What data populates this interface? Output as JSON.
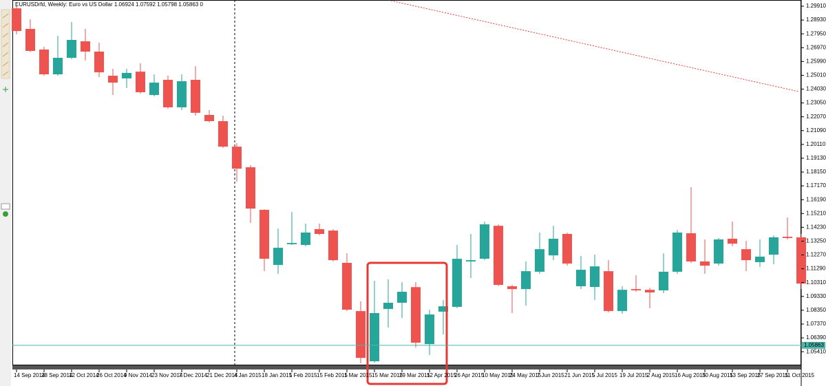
{
  "chart_data": {
    "type": "candlestick",
    "title": "EURUSDrfd, Weekly:  Euro vs US Dollar  1.06924 1.07592 1.05798 1.05863  0",
    "categories": [
      "14 Sep 2014",
      null,
      "28 Sep 2014",
      null,
      "12 Oct 2014",
      null,
      "26 Oct 2014",
      null,
      "9 Nov 2014",
      null,
      "23 Nov 2014",
      null,
      "7 Dec 2014",
      null,
      "21 Dec 2014",
      null,
      "4 Jan 2015",
      null,
      "18 Jan 2015",
      null,
      "1 Feb 2015",
      null,
      "15 Feb 2015",
      null,
      "1 Mar 2015",
      null,
      "15 Mar 2015",
      null,
      "29 Mar 2015",
      null,
      "12 Apr 2015",
      null,
      "26 Apr 2015",
      null,
      "10 May 2015",
      null,
      "24 May 2015",
      null,
      "7 Jun 2015",
      null,
      "21 Jun 2015",
      null,
      "5 Jul 2015",
      null,
      "19 Jul 2015",
      null,
      "2 Aug 2015",
      null,
      "16 Aug 2015",
      null,
      "30 Aug 2015",
      null,
      "13 Sep 2015",
      null,
      "27 Sep 2015",
      null,
      "11 Oct 2015",
      null
    ],
    "open": [
      1.2976,
      1.283,
      1.2684,
      1.2508,
      1.2625,
      1.2742,
      1.2669,
      1.2498,
      1.2479,
      1.2527,
      1.2361,
      1.2469,
      1.2274,
      1.2469,
      1.222,
      1.2176,
      1.1995,
      1.1849,
      1.1547,
      1.1156,
      1.1303,
      1.1298,
      1.141,
      1.14,
      1.1171,
      1.0829,
      1.0473,
      1.0844,
      1.0888,
      1.0999,
      1.0595,
      1.0825,
      1.0859,
      1.1181,
      1.12,
      1.1434,
      1.1005,
      1.0985,
      1.1108,
      1.1224,
      1.1376,
      1.1005,
      1.1,
      1.1112,
      1.0829,
      1.0985,
      1.098,
      1.0976,
      1.1108,
      1.1381,
      1.1181,
      1.1166,
      1.1342,
      1.1268,
      1.1176,
      1.1229,
      1.1356,
      1.1352
    ],
    "high": [
      1.2996,
      1.2898,
      1.2703,
      1.2781,
      1.2879,
      1.283,
      1.2732,
      1.2547,
      1.2547,
      1.2586,
      1.2508,
      1.2498,
      1.2508,
      1.2566,
      1.2254,
      1.2215,
      1.202,
      1.1864,
      1.1551,
      1.1415,
      1.1532,
      1.1449,
      1.1449,
      1.141,
      1.1239,
      1.0898,
      1.1044,
      1.1054,
      1.1034,
      1.1034,
      1.0839,
      1.0907,
      1.1298,
      1.1376,
      1.1464,
      1.1444,
      1.1015,
      1.1181,
      1.1386,
      1.1434,
      1.1386,
      1.122,
      1.1229,
      1.119,
      1.1005,
      1.1083,
      1.0995,
      1.1239,
      1.1405,
      1.1708,
      1.1337,
      1.1347,
      1.1464,
      1.1327,
      1.1337,
      1.1366,
      1.1493,
      1.1376
    ],
    "low": [
      1.2791,
      1.2664,
      1.2498,
      1.2498,
      1.2615,
      1.2606,
      1.2488,
      1.2361,
      1.241,
      1.2371,
      1.2352,
      1.2264,
      1.2254,
      1.2215,
      1.2166,
      1.1986,
      1.1746,
      1.1454,
      1.1112,
      1.1093,
      1.1298,
      1.1288,
      1.1366,
      1.1181,
      1.0829,
      1.0458,
      1.0463,
      1.0712,
      1.078,
      1.0571,
      1.0517,
      1.0663,
      1.0849,
      1.1063,
      1.119,
      1.1005,
      1.0815,
      1.0868,
      1.1093,
      1.119,
      1.1151,
      1.0985,
      1.0907,
      1.082,
      1.081,
      1.0966,
      1.0849,
      1.0956,
      1.1093,
      1.1171,
      1.1093,
      1.1151,
      1.1288,
      1.1112,
      1.1142,
      1.1161,
      1.1337,
      1.0985
    ],
    "close": [
      1.2815,
      1.2674,
      1.2508,
      1.2625,
      1.2752,
      1.2669,
      1.2522,
      1.2449,
      1.2518,
      1.2381,
      1.2449,
      1.2274,
      1.2459,
      1.2235,
      1.2176,
      1.1995,
      1.1839,
      1.1556,
      1.12,
      1.1278,
      1.1312,
      1.1386,
      1.1376,
      1.119,
      1.0839,
      1.0497,
      1.0815,
      1.0888,
      1.0966,
      1.0605,
      1.0805,
      1.0863,
      1.12,
      1.119,
      1.1444,
      1.1015,
      1.0985,
      1.1112,
      1.1268,
      1.1342,
      1.1166,
      1.1122,
      1.1146,
      1.0829,
      1.098,
      1.0976,
      1.0961,
      1.1108,
      1.1386,
      1.1181,
      1.1151,
      1.1337,
      1.1307,
      1.119,
      1.1215,
      1.1352,
      1.1347,
      1.1024
    ],
    "up_color": "#26a69a",
    "down_color": "#ef5350",
    "last_price": 1.05863,
    "last_price_color": "#4db6ac",
    "ylim": [
      1.0449,
      1.3035
    ],
    "yticks": [
      {
        "value": 1.2991,
        "label": "1.29910"
      },
      {
        "value": 1.2893,
        "label": "1.28930"
      },
      {
        "value": 1.2795,
        "label": "1.27950"
      },
      {
        "value": 1.2697,
        "label": "1.26970"
      },
      {
        "value": 1.2599,
        "label": "1.25990"
      },
      {
        "value": 1.2501,
        "label": "1.25010"
      },
      {
        "value": 1.2403,
        "label": "1.24030"
      },
      {
        "value": 1.2305,
        "label": "1.23050"
      },
      {
        "value": 1.2207,
        "label": "1.22070"
      },
      {
        "value": 1.2109,
        "label": "1.21090"
      },
      {
        "value": 1.2011,
        "label": "1.20110"
      },
      {
        "value": 1.1913,
        "label": "1.19130"
      },
      {
        "value": 1.1815,
        "label": "1.18150"
      },
      {
        "value": 1.1717,
        "label": "1.17170"
      },
      {
        "value": 1.1619,
        "label": "1.16190"
      },
      {
        "value": 1.1521,
        "label": "1.15210"
      },
      {
        "value": 1.1423,
        "label": "1.14230"
      },
      {
        "value": 1.1325,
        "label": "1.13250"
      },
      {
        "value": 1.1227,
        "label": "1.12270"
      },
      {
        "value": 1.1129,
        "label": "1.11290"
      },
      {
        "value": 1.1031,
        "label": "1.10310"
      },
      {
        "value": 1.0933,
        "label": "1.09330"
      },
      {
        "value": 1.0835,
        "label": "1.08350"
      },
      {
        "value": 1.0737,
        "label": "1.07370"
      },
      {
        "value": 1.0639,
        "label": "1.06390"
      },
      {
        "value": 1.0541,
        "label": "1.05410"
      }
    ],
    "grid": false
  }
}
